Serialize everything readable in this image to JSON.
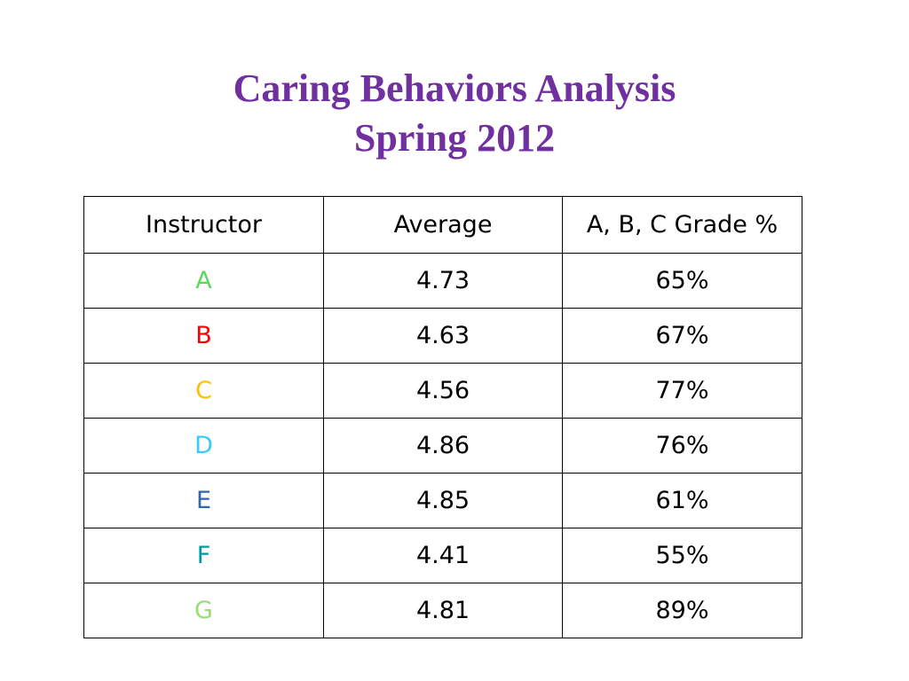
{
  "title": {
    "line1": "Caring Behaviors Analysis",
    "line2": "Spring 2012"
  },
  "table": {
    "headers": [
      "Instructor",
      "Average",
      "A, B, C Grade %"
    ],
    "rows": [
      {
        "instructor": "A",
        "average": "4.73",
        "grade_pct": "65%",
        "color": "#5cd65c"
      },
      {
        "instructor": "B",
        "average": "4.63",
        "grade_pct": "67%",
        "color": "#ff0000"
      },
      {
        "instructor": "C",
        "average": "4.56",
        "grade_pct": "77%",
        "color": "#ffc000"
      },
      {
        "instructor": "D",
        "average": "4.86",
        "grade_pct": "76%",
        "color": "#33ccff"
      },
      {
        "instructor": "E",
        "average": "4.85",
        "grade_pct": "61%",
        "color": "#3366aa"
      },
      {
        "instructor": "F",
        "average": "4.41",
        "grade_pct": "55%",
        "color": "#0099a8"
      },
      {
        "instructor": "G",
        "average": "4.81",
        "grade_pct": "89%",
        "color": "#99dd77"
      }
    ]
  }
}
